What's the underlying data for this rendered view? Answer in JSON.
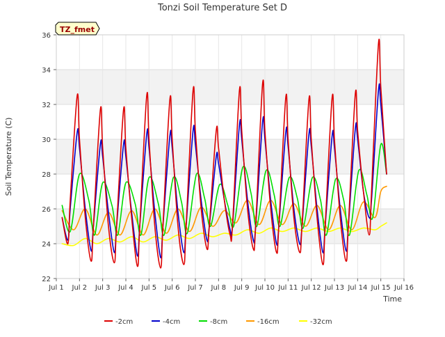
{
  "chart_data": {
    "type": "line",
    "title": "Tonzi Soil Temperature Set D",
    "xlabel": "Time",
    "ylabel": "Soil Temperature (C)",
    "xlim": [
      1,
      16
    ],
    "ylim": [
      22,
      36
    ],
    "x_ticks": [
      1,
      2,
      3,
      4,
      5,
      6,
      7,
      8,
      9,
      10,
      11,
      12,
      13,
      14,
      15,
      16
    ],
    "x_tick_labels": [
      "Jul 1",
      "Jul 2",
      "Jul 3",
      "Jul 4",
      "Jul 5",
      "Jul 6",
      "Jul 7",
      "Jul 8",
      "Jul 9",
      "Jul 10",
      "Jul 11",
      "Jul 12",
      "Jul 13",
      "Jul 14",
      "Jul 15",
      "Jul 16"
    ],
    "y_ticks": [
      22,
      24,
      26,
      28,
      30,
      32,
      34,
      36
    ],
    "y_tick_labels": [
      "22",
      "24",
      "26",
      "28",
      "30",
      "32",
      "34",
      "36"
    ],
    "grid": true,
    "banding": true,
    "legend_position": "bottom",
    "annotation": "TZ_fmet",
    "series": [
      {
        "name": "-2cm",
        "color": "#dd0000",
        "x": [
          1.25,
          1.5,
          1.6,
          1.9,
          2.0,
          2.25,
          2.5,
          2.6,
          2.9,
          3.0,
          3.25,
          3.5,
          3.6,
          3.9,
          4.0,
          4.25,
          4.5,
          4.6,
          4.9,
          5.0,
          5.25,
          5.5,
          5.6,
          5.9,
          6.0,
          6.25,
          6.5,
          6.6,
          6.9,
          7.0,
          7.25,
          7.5,
          7.6,
          7.9,
          8.0,
          8.25,
          8.5,
          8.6,
          8.9,
          9.0,
          9.25,
          9.5,
          9.6,
          9.9,
          10.0,
          10.25,
          10.5,
          10.6,
          10.9,
          11.0,
          11.25,
          11.5,
          11.6,
          11.9,
          12.0,
          12.25,
          12.5,
          12.6,
          12.9,
          13.0,
          13.25,
          13.5,
          13.6,
          13.9,
          14.0,
          14.25,
          14.5,
          14.6,
          14.9,
          15.0,
          15.25
        ],
        "values": [
          25.5,
          24.0,
          26.5,
          32.5,
          30.0,
          25.5,
          23.0,
          25.0,
          31.7,
          29.5,
          25.0,
          22.9,
          25.0,
          31.7,
          29.5,
          25.5,
          22.7,
          25.0,
          32.5,
          30.0,
          25.0,
          22.6,
          25.0,
          32.3,
          30.0,
          25.0,
          22.8,
          25.0,
          32.8,
          30.5,
          26.0,
          23.7,
          25.0,
          30.5,
          29.5,
          26.5,
          24.5,
          25.0,
          32.8,
          30.5,
          26.0,
          23.7,
          25.0,
          33.2,
          30.5,
          26.0,
          23.5,
          25.0,
          32.4,
          30.0,
          25.5,
          23.5,
          25.0,
          32.3,
          30.0,
          25.5,
          22.8,
          25.0,
          32.4,
          30.0,
          25.5,
          23.0,
          25.0,
          32.6,
          30.5,
          27.0,
          24.5,
          27.0,
          35.5,
          33.0,
          28.0
        ]
      },
      {
        "name": "-4cm",
        "color": "#0000cc",
        "x": [
          1.25,
          1.5,
          1.6,
          1.9,
          2.0,
          2.25,
          2.5,
          2.6,
          2.9,
          3.0,
          3.25,
          3.5,
          3.6,
          3.9,
          4.0,
          4.25,
          4.5,
          4.6,
          4.9,
          5.0,
          5.25,
          5.5,
          5.6,
          5.9,
          6.0,
          6.25,
          6.5,
          6.6,
          6.9,
          7.0,
          7.25,
          7.5,
          7.6,
          7.9,
          8.0,
          8.25,
          8.5,
          8.6,
          8.9,
          9.0,
          9.25,
          9.5,
          9.6,
          9.9,
          10.0,
          10.25,
          10.5,
          10.6,
          10.9,
          11.0,
          11.25,
          11.5,
          11.6,
          11.9,
          12.0,
          12.25,
          12.5,
          12.6,
          12.9,
          13.0,
          13.25,
          13.5,
          13.6,
          13.9,
          14.0,
          14.25,
          14.5,
          14.6,
          14.9,
          15.0,
          15.25
        ],
        "values": [
          25.5,
          24.2,
          26.0,
          30.4,
          29.5,
          26.0,
          23.6,
          25.0,
          29.7,
          29.0,
          25.8,
          23.5,
          25.0,
          29.7,
          29.0,
          25.8,
          23.3,
          25.0,
          30.3,
          29.5,
          25.8,
          23.2,
          25.0,
          30.2,
          29.5,
          25.8,
          23.5,
          25.0,
          30.5,
          29.7,
          26.5,
          24.2,
          25.0,
          29.0,
          28.6,
          26.5,
          24.8,
          25.0,
          30.8,
          30.0,
          26.5,
          24.2,
          25.0,
          31.0,
          30.0,
          26.5,
          24.0,
          25.0,
          30.4,
          29.6,
          26.0,
          24.0,
          25.0,
          30.3,
          29.6,
          26.0,
          23.5,
          25.0,
          30.2,
          29.5,
          26.0,
          23.6,
          25.0,
          30.6,
          30.0,
          27.0,
          25.5,
          26.5,
          32.8,
          32.0,
          28.0
        ]
      },
      {
        "name": "-8cm",
        "color": "#00dd00",
        "x": [
          1.25,
          1.6,
          2.0,
          2.4,
          2.65,
          3.0,
          3.4,
          3.65,
          4.0,
          4.4,
          4.65,
          5.0,
          5.4,
          5.65,
          6.05,
          6.4,
          6.65,
          7.05,
          7.4,
          7.65,
          8.05,
          8.4,
          8.65,
          9.05,
          9.4,
          9.65,
          10.05,
          10.4,
          10.65,
          11.05,
          11.4,
          11.65,
          12.05,
          12.4,
          12.65,
          13.05,
          13.4,
          13.65,
          14.05,
          14.4,
          14.65,
          15.0,
          15.25
        ],
        "values": [
          26.2,
          24.7,
          28.0,
          26.5,
          24.5,
          27.5,
          26.2,
          24.5,
          27.5,
          26.3,
          24.5,
          27.8,
          26.3,
          24.5,
          27.8,
          26.4,
          24.6,
          28.0,
          26.6,
          25.0,
          27.4,
          26.2,
          25.0,
          28.4,
          26.9,
          25.0,
          28.2,
          26.8,
          25.0,
          27.8,
          26.6,
          24.9,
          27.8,
          26.5,
          24.5,
          27.7,
          26.5,
          24.5,
          28.2,
          26.8,
          25.5,
          29.7,
          28.0
        ]
      },
      {
        "name": "-16cm",
        "color": "#ff9900",
        "x": [
          1.25,
          1.75,
          2.25,
          2.75,
          3.25,
          3.75,
          4.25,
          4.75,
          5.25,
          5.75,
          6.25,
          6.75,
          7.25,
          7.75,
          8.25,
          8.75,
          9.25,
          9.75,
          10.25,
          10.75,
          11.25,
          11.75,
          12.25,
          12.75,
          13.25,
          13.75,
          14.25,
          14.75,
          15.0,
          15.25
        ],
        "values": [
          25.9,
          24.8,
          26.0,
          24.5,
          25.8,
          24.5,
          25.9,
          24.5,
          26.0,
          24.6,
          26.0,
          24.7,
          26.1,
          25.0,
          25.9,
          25.2,
          26.5,
          25.1,
          26.5,
          25.1,
          26.3,
          25.0,
          26.2,
          24.8,
          26.2,
          24.8,
          26.4,
          25.5,
          27.0,
          27.3
        ]
      },
      {
        "name": "-32cm",
        "color": "#ffff00",
        "x": [
          1.25,
          1.75,
          2.25,
          2.75,
          3.25,
          3.75,
          4.25,
          4.75,
          5.25,
          5.75,
          6.25,
          6.75,
          7.25,
          7.75,
          8.25,
          8.75,
          9.25,
          9.75,
          10.25,
          10.75,
          11.25,
          11.75,
          12.25,
          12.75,
          13.25,
          13.75,
          14.25,
          14.75,
          15.0,
          15.25
        ],
        "values": [
          24.0,
          23.9,
          24.3,
          24.0,
          24.3,
          24.1,
          24.4,
          24.1,
          24.4,
          24.2,
          24.5,
          24.3,
          24.6,
          24.4,
          24.6,
          24.5,
          24.8,
          24.6,
          24.9,
          24.7,
          24.9,
          24.7,
          24.9,
          24.7,
          24.9,
          24.7,
          24.9,
          24.8,
          25.0,
          25.2
        ]
      }
    ]
  }
}
